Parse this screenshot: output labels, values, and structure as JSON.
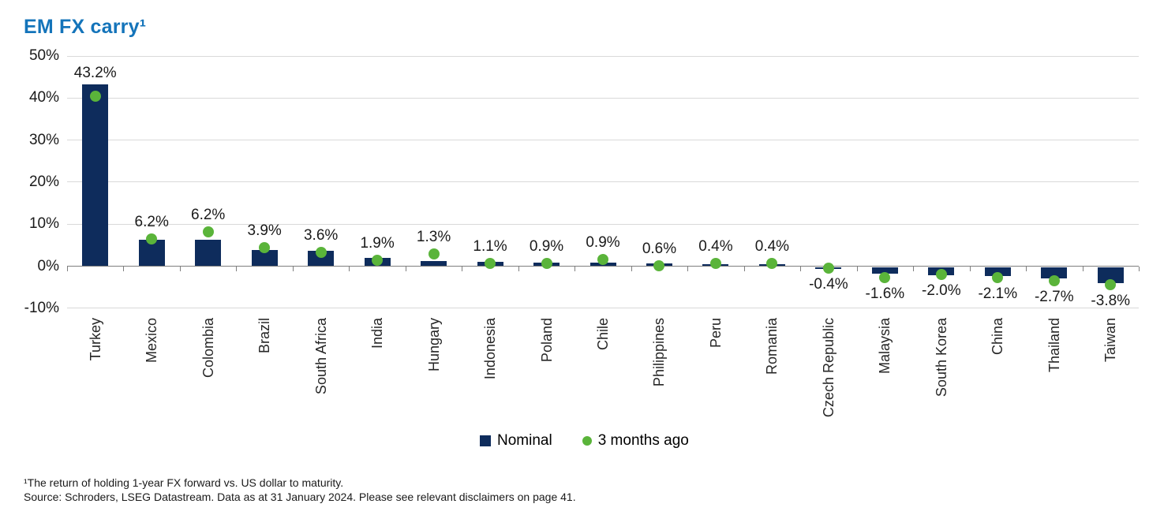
{
  "page": {
    "title": "EM FX carry¹"
  },
  "chart_data": {
    "type": "bar",
    "title": "EM FX carry¹",
    "categories": [
      "Turkey",
      "Mexico",
      "Colombia",
      "Brazil",
      "South Africa",
      "India",
      "Hungary",
      "Indonesia",
      "Poland",
      "Chile",
      "Philippines",
      "Peru",
      "Romania",
      "Czech Republic",
      "Malaysia",
      "South Korea",
      "China",
      "Thailand",
      "Taiwan"
    ],
    "series": [
      {
        "name": "Nominal",
        "type": "bar",
        "color": "#0e2c5c",
        "values": [
          43.2,
          6.2,
          6.2,
          3.9,
          3.6,
          1.9,
          1.3,
          1.1,
          0.9,
          0.9,
          0.6,
          0.4,
          0.4,
          -0.4,
          -1.6,
          -2.0,
          -2.1,
          -2.7,
          -3.8
        ]
      },
      {
        "name": "3 months ago",
        "type": "scatter",
        "color": "#5ab43a",
        "values": [
          40.5,
          6.5,
          8.2,
          4.4,
          3.2,
          1.5,
          2.9,
          0.6,
          0.6,
          1.6,
          0.1,
          0.6,
          0.6,
          -0.5,
          -2.7,
          -2.0,
          -2.7,
          -3.5,
          -4.5
        ]
      }
    ],
    "data_labels": [
      "43.2%",
      "6.2%",
      "6.2%",
      "3.9%",
      "3.6%",
      "1.9%",
      "1.3%",
      "1.1%",
      "0.9%",
      "0.9%",
      "0.6%",
      "0.4%",
      "0.4%",
      "-0.4%",
      "-1.6%",
      "-2.0%",
      "-2.1%",
      "-2.7%",
      "-3.8%"
    ],
    "y_ticks": [
      "50%",
      "40%",
      "30%",
      "20%",
      "10%",
      "0%",
      "-10%"
    ],
    "y_tick_values": [
      50,
      40,
      30,
      20,
      10,
      0,
      -10
    ],
    "ylim": [
      -10,
      50
    ],
    "grid": true,
    "gridline_color": "#d9d9d9",
    "axis_color": "#7f7f7f",
    "legend_position": "bottom"
  },
  "legend": {
    "items": [
      {
        "label": "Nominal",
        "color": "#0e2c5c",
        "marker": "square"
      },
      {
        "label": "3 months ago",
        "color": "#5ab43a",
        "marker": "circle"
      }
    ]
  },
  "footnotes": {
    "line1": "¹The return of holding 1-year FX forward vs. US dollar to maturity.",
    "line2": "Source: Schroders, LSEG Datastream. Data as at 31 January 2024. Please see relevant disclaimers on page 41."
  }
}
